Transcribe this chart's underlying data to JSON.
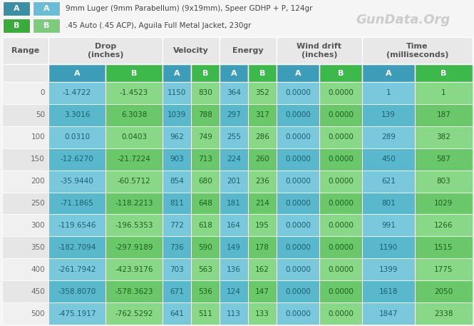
{
  "legend_A_label": "9mm Luger (9mm Parabellum) (9x19mm), Speer GDHP + P, 124gr",
  "legend_B_label": ".45 Auto (.45 ACP), Aguila Full Metal Jacket, 230gr",
  "ranges": [
    0,
    50,
    100,
    150,
    200,
    250,
    300,
    350,
    400,
    450,
    500
  ],
  "drop_A": [
    "-1.4722",
    "3.3016",
    "0.0310",
    "-12.6270",
    "-35.9440",
    "-71.1865",
    "-119.6546",
    "-182.7094",
    "-261.7942",
    "-358.8070",
    "-475.1917"
  ],
  "drop_B": [
    "-1.4523",
    "6.3038",
    "0.0403",
    "-21.7224",
    "-60.5712",
    "-118.2213",
    "-196.5353",
    "-297.9189",
    "-423.9176",
    "-578.3623",
    "-762.5292"
  ],
  "vel_A": [
    1150,
    1039,
    962,
    903,
    854,
    811,
    772,
    736,
    703,
    671,
    641
  ],
  "vel_B": [
    830,
    788,
    749,
    713,
    680,
    648,
    618,
    590,
    563,
    536,
    511
  ],
  "energy_A": [
    364,
    297,
    255,
    224,
    201,
    181,
    164,
    149,
    136,
    124,
    113
  ],
  "energy_B": [
    352,
    317,
    286,
    260,
    236,
    214,
    195,
    178,
    162,
    147,
    133
  ],
  "wind_A": [
    "0.0000",
    "0.0000",
    "0.0000",
    "0.0000",
    "0.0000",
    "0.0000",
    "0.0000",
    "0.0000",
    "0.0000",
    "0.0000",
    "0.0000"
  ],
  "wind_B": [
    "0.0000",
    "0.0000",
    "0.0000",
    "0.0000",
    "0.0000",
    "0.0000",
    "0.0000",
    "0.0000",
    "0.0000",
    "0.0000",
    "0.0000"
  ],
  "time_A": [
    1,
    139,
    289,
    450,
    621,
    801,
    991,
    1190,
    1399,
    1618,
    1847
  ],
  "time_B": [
    1,
    187,
    382,
    587,
    803,
    1029,
    1266,
    1515,
    1775,
    2050,
    2338
  ],
  "color_A_dark": "#3d9db8",
  "color_A_light": "#5bbdd4",
  "color_B_dark": "#3db84a",
  "color_B_light": "#6dce6d",
  "legend_A_dark": "#3a8fa5",
  "legend_A_light": "#6abdd4",
  "legend_B_dark": "#3aaa3a",
  "legend_B_light": "#7dcc7d",
  "header_bg": "#e8e8e8",
  "row_even_range": "#f0f0f0",
  "row_odd_range": "#e6e6e6",
  "row_even_A": "#7ac8dc",
  "row_odd_A": "#5ab8cc",
  "row_even_B": "#88d888",
  "row_odd_B": "#6ac86a",
  "text_range": "#666666",
  "text_A": "#1a5f70",
  "text_B": "#1a601a",
  "header_text": "#555555",
  "bg_color": "#f5f5f5",
  "watermark": "GunData.Org"
}
